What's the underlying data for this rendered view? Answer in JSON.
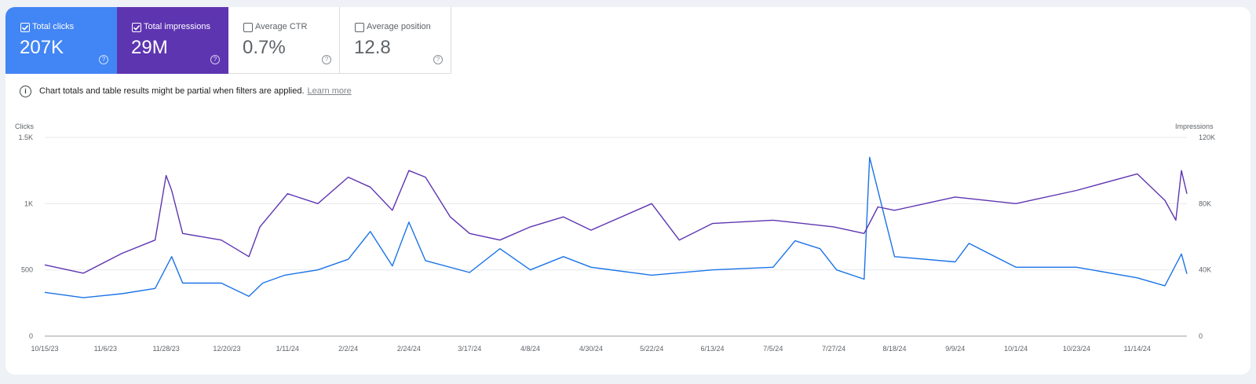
{
  "metrics": [
    {
      "label": "Total clicks",
      "value": "207K",
      "checked": true,
      "color": "#4285f4"
    },
    {
      "label": "Total impressions",
      "value": "29M",
      "checked": true,
      "color": "#5e35b1"
    },
    {
      "label": "Average CTR",
      "value": "0.7%",
      "checked": false
    },
    {
      "label": "Average position",
      "value": "12.8",
      "checked": false
    }
  ],
  "notice": {
    "text": "Chart totals and table results might be partial when filters are applied.",
    "link": "Learn more"
  },
  "chart_data": {
    "type": "line",
    "left_axis_title": "Clicks",
    "right_axis_title": "Impressions",
    "left_ticks": [
      "0",
      "500",
      "1K",
      "1.5K"
    ],
    "right_ticks": [
      "0",
      "40K",
      "80K",
      "120K"
    ],
    "ylim_left": [
      0,
      1500
    ],
    "ylim_right": [
      0,
      120000
    ],
    "x_tick_labels": [
      "10/15/23",
      "11/6/23",
      "11/28/23",
      "12/20/23",
      "1/11/24",
      "2/2/24",
      "2/24/24",
      "3/17/24",
      "4/8/24",
      "4/30/24",
      "5/22/24",
      "6/13/24",
      "7/5/24",
      "7/27/24",
      "8/18/24",
      "9/9/24",
      "10/1/24",
      "10/23/24",
      "11/14/24"
    ],
    "x_range": [
      "10/15/23",
      "12/2/24"
    ],
    "series": [
      {
        "name": "Total clicks",
        "axis": "left",
        "color": "#1a73e8",
        "points": [
          [
            "10/15/23",
            330
          ],
          [
            "10/29/23",
            290
          ],
          [
            "11/12/23",
            320
          ],
          [
            "11/24/23",
            360
          ],
          [
            "11/30/23",
            600
          ],
          [
            "12/4/23",
            400
          ],
          [
            "12/18/23",
            400
          ],
          [
            "12/28/23",
            300
          ],
          [
            "1/2/24",
            400
          ],
          [
            "1/10/24",
            460
          ],
          [
            "1/22/24",
            500
          ],
          [
            "2/2/24",
            580
          ],
          [
            "2/10/24",
            790
          ],
          [
            "2/18/24",
            530
          ],
          [
            "2/24/24",
            860
          ],
          [
            "3/1/24",
            570
          ],
          [
            "3/17/24",
            480
          ],
          [
            "3/28/24",
            660
          ],
          [
            "4/8/24",
            500
          ],
          [
            "4/20/24",
            600
          ],
          [
            "4/30/24",
            520
          ],
          [
            "5/22/24",
            460
          ],
          [
            "6/13/24",
            500
          ],
          [
            "7/5/24",
            520
          ],
          [
            "7/13/24",
            720
          ],
          [
            "7/22/24",
            660
          ],
          [
            "7/28/24",
            500
          ],
          [
            "8/7/24",
            430
          ],
          [
            "8/9/24",
            1350
          ],
          [
            "8/18/24",
            600
          ],
          [
            "9/9/24",
            560
          ],
          [
            "9/14/24",
            700
          ],
          [
            "10/1/24",
            520
          ],
          [
            "10/23/24",
            520
          ],
          [
            "11/14/24",
            440
          ],
          [
            "11/24/24",
            380
          ],
          [
            "11/30/24",
            620
          ],
          [
            "12/2/24",
            470
          ]
        ]
      },
      {
        "name": "Total impressions",
        "axis": "right",
        "color": "#5e35b1",
        "points": [
          [
            "10/15/23",
            43000
          ],
          [
            "10/29/23",
            38000
          ],
          [
            "11/12/23",
            50000
          ],
          [
            "11/24/23",
            58000
          ],
          [
            "11/28/23",
            97000
          ],
          [
            "11/30/23",
            88000
          ],
          [
            "12/4/23",
            62000
          ],
          [
            "12/18/23",
            58000
          ],
          [
            "12/28/23",
            48000
          ],
          [
            "1/1/24",
            66000
          ],
          [
            "1/11/24",
            86000
          ],
          [
            "1/22/24",
            80000
          ],
          [
            "2/2/24",
            96000
          ],
          [
            "2/10/24",
            90000
          ],
          [
            "2/18/24",
            76000
          ],
          [
            "2/24/24",
            100000
          ],
          [
            "3/1/24",
            96000
          ],
          [
            "3/10/24",
            72000
          ],
          [
            "3/17/24",
            62000
          ],
          [
            "3/28/24",
            58000
          ],
          [
            "4/8/24",
            66000
          ],
          [
            "4/20/24",
            72000
          ],
          [
            "4/30/24",
            64000
          ],
          [
            "5/22/24",
            80000
          ],
          [
            "6/1/24",
            58000
          ],
          [
            "6/13/24",
            68000
          ],
          [
            "7/5/24",
            70000
          ],
          [
            "7/27/24",
            66000
          ],
          [
            "8/7/24",
            62000
          ],
          [
            "8/12/24",
            78000
          ],
          [
            "8/18/24",
            76000
          ],
          [
            "9/9/24",
            84000
          ],
          [
            "10/1/24",
            80000
          ],
          [
            "10/23/24",
            88000
          ],
          [
            "11/14/24",
            98000
          ],
          [
            "11/24/24",
            82000
          ],
          [
            "11/28/24",
            70000
          ],
          [
            "11/30/24",
            100000
          ],
          [
            "12/2/24",
            86000
          ]
        ]
      }
    ]
  }
}
